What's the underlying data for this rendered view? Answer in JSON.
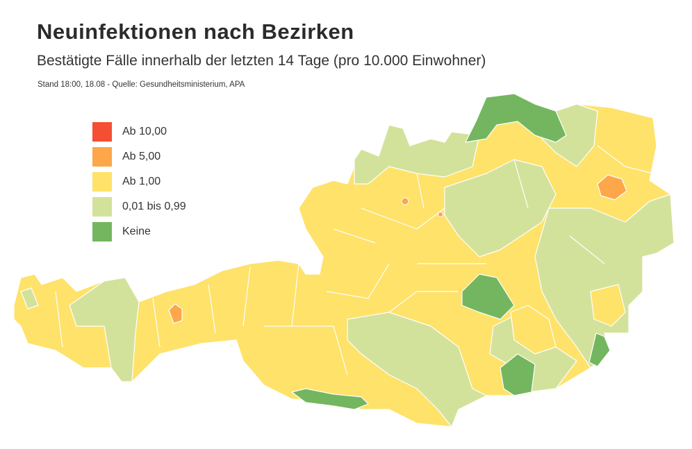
{
  "header": {
    "title": "Neuinfektionen nach Bezirken",
    "subtitle": "Bestätigte Fälle innerhalb der letzten 14 Tage (pro 10.000 Einwohner)",
    "source": "Stand 18:00, 18.08 - Quelle: Gesundheitsministerium, APA"
  },
  "legend": [
    {
      "label": "Ab 10,00",
      "color": "#f44e33"
    },
    {
      "label": "Ab 5,00",
      "color": "#fea64a"
    },
    {
      "label": "Ab 1,00",
      "color": "#fee26a"
    },
    {
      "label": "0,01 bis 0,99",
      "color": "#d3e29b"
    },
    {
      "label": "Keine",
      "color": "#74b65f"
    }
  ],
  "map": {
    "region": "Österreich",
    "unit": "Bezirke"
  }
}
